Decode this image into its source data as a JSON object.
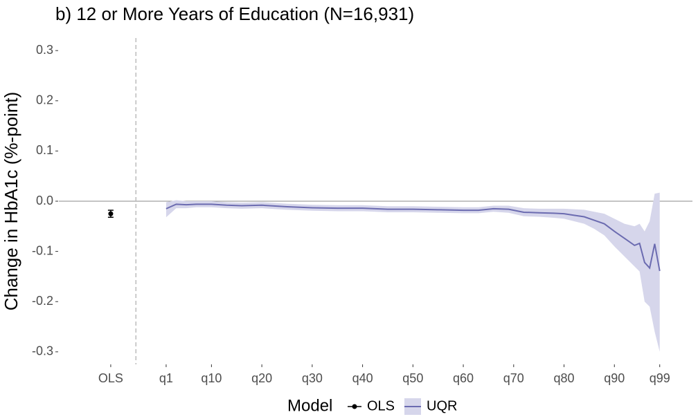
{
  "chart_data": {
    "type": "line",
    "title": "b) 12 or More Years of Education (N=16,931)",
    "ylabel": "Change in HbA1c (%-point)",
    "legend_title": "Model",
    "legend": "bottom",
    "xlim": [
      -20.3,
      105.5
    ],
    "ylim": [
      -0.325,
      0.325
    ],
    "xticks": [
      {
        "value": -10,
        "label": "OLS"
      },
      {
        "value": 1,
        "label": "q1"
      },
      {
        "value": 10,
        "label": "q10"
      },
      {
        "value": 20,
        "label": "q20"
      },
      {
        "value": 30,
        "label": "q30"
      },
      {
        "value": 40,
        "label": "q40"
      },
      {
        "value": 50,
        "label": "q50"
      },
      {
        "value": 60,
        "label": "q60"
      },
      {
        "value": 70,
        "label": "q70"
      },
      {
        "value": 80,
        "label": "q80"
      },
      {
        "value": 90,
        "label": "q90"
      },
      {
        "value": 99,
        "label": "q99"
      }
    ],
    "yticks": [
      0.3,
      0.2,
      0.1,
      {
        "value": 0,
        "label": "0.0"
      },
      -0.1,
      -0.2,
      -0.3
    ],
    "hline": 0,
    "vline": -5,
    "ols": {
      "name": "OLS",
      "color": "#000000",
      "x": -10,
      "value": -0.025,
      "error": 0.007
    },
    "series": [
      {
        "name": "UQR",
        "color": "#6b6bb0",
        "band_color": "#d6d6eb",
        "x": [
          1,
          3,
          5,
          7,
          10,
          13,
          16,
          20,
          25,
          30,
          35,
          40,
          45,
          50,
          55,
          60,
          63,
          66,
          69,
          72,
          75,
          78,
          80,
          82,
          84,
          86,
          88,
          90,
          92,
          94,
          95,
          96,
          97,
          98,
          99
        ],
        "values": [
          -0.015,
          -0.006,
          -0.007,
          -0.006,
          -0.006,
          -0.008,
          -0.009,
          -0.008,
          -0.011,
          -0.013,
          -0.014,
          -0.014,
          -0.016,
          -0.016,
          -0.017,
          -0.018,
          -0.018,
          -0.015,
          -0.016,
          -0.022,
          -0.023,
          -0.024,
          -0.025,
          -0.028,
          -0.031,
          -0.038,
          -0.045,
          -0.06,
          -0.074,
          -0.088,
          -0.084,
          -0.122,
          -0.133,
          -0.085,
          -0.139
        ],
        "lower": [
          -0.032,
          -0.014,
          -0.014,
          -0.012,
          -0.012,
          -0.014,
          -0.015,
          -0.014,
          -0.017,
          -0.019,
          -0.02,
          -0.02,
          -0.022,
          -0.022,
          -0.023,
          -0.024,
          -0.024,
          -0.021,
          -0.023,
          -0.03,
          -0.031,
          -0.033,
          -0.035,
          -0.04,
          -0.045,
          -0.055,
          -0.068,
          -0.09,
          -0.11,
          -0.13,
          -0.14,
          -0.2,
          -0.21,
          -0.26,
          -0.3
        ],
        "upper": [
          -0.002,
          0.002,
          0,
          0,
          0,
          -0.002,
          -0.003,
          -0.002,
          -0.005,
          -0.007,
          -0.008,
          -0.008,
          -0.01,
          -0.01,
          -0.011,
          -0.012,
          -0.012,
          -0.009,
          -0.009,
          -0.014,
          -0.015,
          -0.015,
          -0.015,
          -0.016,
          -0.017,
          -0.021,
          -0.025,
          -0.035,
          -0.045,
          -0.05,
          -0.045,
          -0.06,
          -0.04,
          0.015,
          0.017
        ]
      }
    ]
  }
}
